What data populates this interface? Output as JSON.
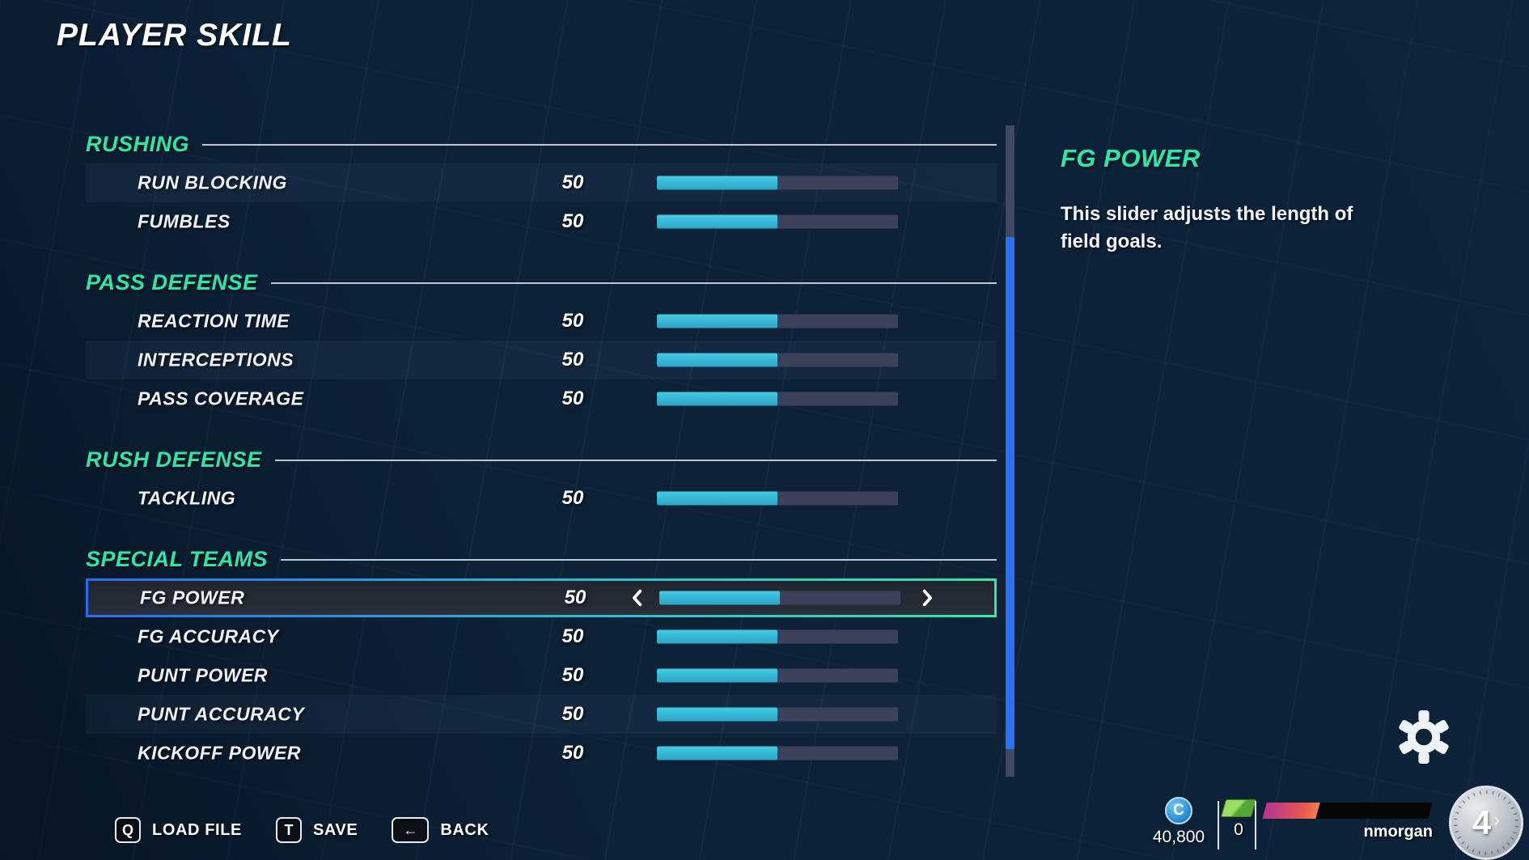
{
  "title": "PLAYER SKILL",
  "detail": {
    "title": "FG POWER",
    "description": "This slider adjusts the length of\nfield goals."
  },
  "sections": [
    {
      "title": "RUSHING",
      "rows": [
        {
          "label": "RUN BLOCKING",
          "value": "50",
          "percent": 50,
          "alt": true
        },
        {
          "label": "FUMBLES",
          "value": "50",
          "percent": 50
        }
      ]
    },
    {
      "title": "PASS DEFENSE",
      "rows": [
        {
          "label": "REACTION TIME",
          "value": "50",
          "percent": 50
        },
        {
          "label": "INTERCEPTIONS",
          "value": "50",
          "percent": 50,
          "alt": true
        },
        {
          "label": "PASS COVERAGE",
          "value": "50",
          "percent": 50
        }
      ]
    },
    {
      "title": "RUSH DEFENSE",
      "rows": [
        {
          "label": "TACKLING",
          "value": "50",
          "percent": 50
        }
      ]
    },
    {
      "title": "SPECIAL TEAMS",
      "rows": [
        {
          "label": "FG POWER",
          "value": "50",
          "percent": 50,
          "selected": true
        },
        {
          "label": "FG ACCURACY",
          "value": "50",
          "percent": 50
        },
        {
          "label": "PUNT POWER",
          "value": "50",
          "percent": 50
        },
        {
          "label": "PUNT ACCURACY",
          "value": "50",
          "percent": 50,
          "alt": true
        },
        {
          "label": "KICKOFF POWER",
          "value": "50",
          "percent": 50
        }
      ]
    }
  ],
  "footer": {
    "hints": [
      {
        "key": "Q",
        "label": "LOAD FILE",
        "wide": false,
        "icon": "q-key-icon"
      },
      {
        "key": "T",
        "label": "SAVE",
        "wide": false,
        "icon": "t-key-icon"
      },
      {
        "key": "←",
        "label": "BACK",
        "wide": true,
        "icon": "backspace-key-icon"
      }
    ]
  },
  "status": {
    "coins": "40,800",
    "coin_letter": "C",
    "cash": "0",
    "username": "nmorgan",
    "level": "4",
    "level_arrow": "›",
    "xp_percent": 32
  },
  "colors": {
    "accent_teal": "#2fe6a9",
    "accent_blue": "#2b6cf0",
    "slider_fill": "#35b9d8",
    "slider_track": "#3a4158",
    "scrollbar_thumb": "#2e6ff2",
    "xp_start": "#b4368e",
    "xp_end": "#f4814a",
    "coin_blue": "#2b8fd9",
    "cash_green": "#6fc244"
  }
}
